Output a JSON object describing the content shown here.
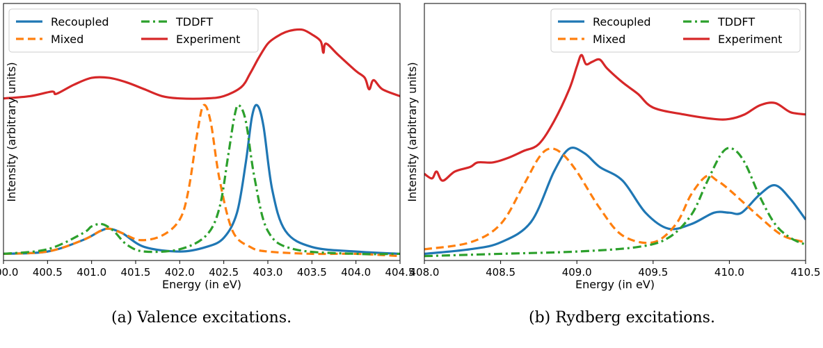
{
  "chart_data": [
    {
      "type": "line",
      "xlabel": "Energy (in eV)",
      "ylabel": "Intensity (arbitrary units)",
      "xlim": [
        400.0,
        404.5
      ],
      "ylim": [
        0,
        1
      ],
      "xticks": [
        "400.0",
        "400.5",
        "401.0",
        "401.5",
        "402.0",
        "402.5",
        "403.0",
        "403.5",
        "404.0",
        "404.5"
      ],
      "yticks": [],
      "grid": false,
      "legend": {
        "placement": "top-left",
        "ncol": 2
      },
      "series": [
        {
          "name": "Recoupled",
          "color": "#1f77b4",
          "dash": "solid",
          "x": [
            400.0,
            400.5,
            400.9,
            401.1,
            401.2,
            401.35,
            401.6,
            402.0,
            402.3,
            402.5,
            402.65,
            402.75,
            402.82,
            402.88,
            402.95,
            403.05,
            403.2,
            403.5,
            404.0,
            404.5
          ],
          "y": [
            0.02,
            0.03,
            0.08,
            0.12,
            0.13,
            0.11,
            0.05,
            0.03,
            0.05,
            0.09,
            0.2,
            0.42,
            0.62,
            0.67,
            0.58,
            0.3,
            0.12,
            0.05,
            0.03,
            0.02
          ]
        },
        {
          "name": "Mixed",
          "color": "#ff7f0e",
          "dash": "dashed",
          "x": [
            400.0,
            400.5,
            400.9,
            401.1,
            401.2,
            401.35,
            401.55,
            401.8,
            402.0,
            402.1,
            402.2,
            402.27,
            402.35,
            402.45,
            402.6,
            402.8,
            403.0,
            403.5,
            404.0,
            404.5
          ],
          "y": [
            0.02,
            0.03,
            0.08,
            0.12,
            0.13,
            0.11,
            0.08,
            0.1,
            0.17,
            0.3,
            0.55,
            0.67,
            0.6,
            0.35,
            0.12,
            0.05,
            0.03,
            0.02,
            0.02,
            0.01
          ]
        },
        {
          "name": "TDDFT",
          "color": "#2ca02c",
          "dash": "dashdot",
          "x": [
            400.0,
            400.5,
            400.9,
            401.0,
            401.12,
            401.25,
            401.4,
            401.6,
            402.0,
            402.3,
            402.45,
            402.55,
            402.62,
            402.67,
            402.75,
            402.85,
            403.0,
            403.3,
            404.0,
            404.5
          ],
          "y": [
            0.02,
            0.04,
            0.11,
            0.14,
            0.15,
            0.12,
            0.06,
            0.03,
            0.04,
            0.1,
            0.22,
            0.45,
            0.62,
            0.67,
            0.6,
            0.35,
            0.12,
            0.04,
            0.02,
            0.02
          ]
        },
        {
          "name": "Experiment",
          "color": "#d62728",
          "dash": "solid",
          "x": [
            400.0,
            400.3,
            400.55,
            400.6,
            400.8,
            401.0,
            401.2,
            401.4,
            401.6,
            401.8,
            402.0,
            402.3,
            402.5,
            402.7,
            402.8,
            402.9,
            403.0,
            403.1,
            403.2,
            403.3,
            403.4,
            403.5,
            403.6,
            403.63,
            403.66,
            403.8,
            404.0,
            404.1,
            404.15,
            404.2,
            404.3,
            404.5
          ],
          "y": [
            0.7,
            0.71,
            0.73,
            0.72,
            0.76,
            0.79,
            0.79,
            0.77,
            0.74,
            0.71,
            0.7,
            0.7,
            0.71,
            0.75,
            0.81,
            0.88,
            0.94,
            0.97,
            0.99,
            1.0,
            1.0,
            0.98,
            0.95,
            0.9,
            0.94,
            0.89,
            0.82,
            0.79,
            0.74,
            0.78,
            0.74,
            0.71
          ]
        }
      ]
    },
    {
      "type": "line",
      "xlabel": "Energy (in eV)",
      "ylabel": "Intensity (arbitrary units)",
      "xlim": [
        408.0,
        410.5
      ],
      "ylim": [
        0,
        1
      ],
      "xticks": [
        "408.0",
        "408.5",
        "409.0",
        "409.5",
        "410.0",
        "410.5"
      ],
      "yticks": [],
      "grid": false,
      "legend": {
        "placement": "top-right",
        "ncol": 2
      },
      "series": [
        {
          "name": "Recoupled",
          "color": "#1f77b4",
          "dash": "solid",
          "x": [
            408.0,
            408.3,
            408.5,
            408.7,
            408.85,
            408.95,
            409.05,
            409.15,
            409.3,
            409.45,
            409.6,
            409.75,
            409.9,
            410.0,
            410.08,
            410.2,
            410.3,
            410.4,
            410.5
          ],
          "y": [
            0.02,
            0.04,
            0.07,
            0.16,
            0.38,
            0.48,
            0.46,
            0.4,
            0.34,
            0.2,
            0.13,
            0.15,
            0.2,
            0.2,
            0.2,
            0.28,
            0.32,
            0.26,
            0.17
          ]
        },
        {
          "name": "Mixed",
          "color": "#ff7f0e",
          "dash": "dashed",
          "x": [
            408.0,
            408.3,
            408.5,
            408.65,
            408.75,
            408.82,
            408.9,
            409.0,
            409.15,
            409.3,
            409.5,
            409.65,
            409.75,
            409.85,
            409.92,
            410.0,
            410.2,
            410.35,
            410.5
          ],
          "y": [
            0.04,
            0.07,
            0.15,
            0.32,
            0.44,
            0.48,
            0.46,
            0.38,
            0.22,
            0.1,
            0.07,
            0.15,
            0.28,
            0.36,
            0.34,
            0.3,
            0.18,
            0.1,
            0.07
          ]
        },
        {
          "name": "TDDFT",
          "color": "#2ca02c",
          "dash": "dashdot",
          "x": [
            408.0,
            408.5,
            409.0,
            409.4,
            409.6,
            409.75,
            409.85,
            409.95,
            410.02,
            410.1,
            410.2,
            410.3,
            410.4,
            410.5
          ],
          "y": [
            0.01,
            0.02,
            0.03,
            0.05,
            0.09,
            0.19,
            0.33,
            0.46,
            0.48,
            0.42,
            0.27,
            0.15,
            0.09,
            0.06
          ]
        },
        {
          "name": "Experiment",
          "color": "#d62728",
          "dash": "solid",
          "x": [
            408.0,
            408.05,
            408.08,
            408.12,
            408.2,
            408.3,
            408.35,
            408.45,
            408.55,
            408.65,
            408.75,
            408.85,
            408.95,
            409.0,
            409.03,
            409.06,
            409.1,
            409.15,
            409.2,
            409.3,
            409.4,
            409.5,
            409.7,
            409.9,
            410.0,
            410.1,
            410.2,
            410.3,
            410.4,
            410.5
          ],
          "y": [
            0.37,
            0.35,
            0.38,
            0.34,
            0.38,
            0.4,
            0.42,
            0.42,
            0.44,
            0.47,
            0.5,
            0.6,
            0.74,
            0.84,
            0.89,
            0.85,
            0.86,
            0.87,
            0.83,
            0.77,
            0.72,
            0.66,
            0.63,
            0.61,
            0.61,
            0.63,
            0.67,
            0.68,
            0.64,
            0.63
          ]
        }
      ]
    }
  ],
  "captions": {
    "a": "(a) Valence excitations.",
    "b": "(b) Rydberg excitations."
  }
}
